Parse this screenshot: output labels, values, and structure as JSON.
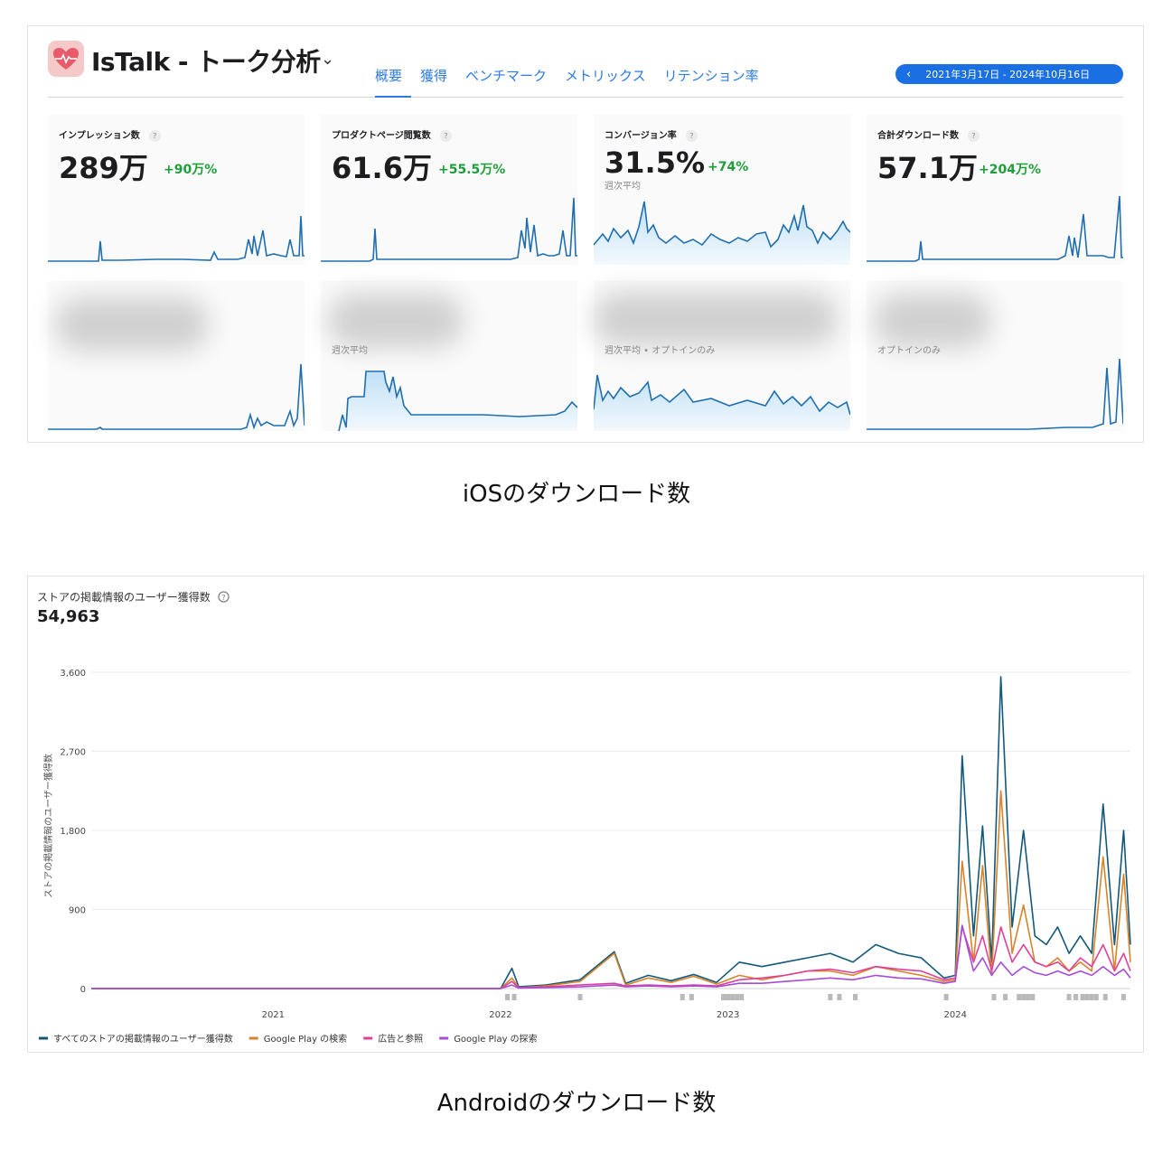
{
  "ios": {
    "app_title": "IsTalk - トーク分析",
    "tabs": [
      "概要",
      "獲得",
      "ベンチマーク",
      "メトリックス",
      "リテンション率"
    ],
    "active_tab": "概要",
    "date_range": "2021年3月17日 - 2024年10月16日",
    "metrics": [
      {
        "label": "インプレッション数",
        "value": "289万",
        "delta": "+90万%",
        "sub": ""
      },
      {
        "label": "プロダクトページ閲覧数",
        "value": "61.6万",
        "delta": "+55.5万%",
        "sub": ""
      },
      {
        "label": "コンバージョン率",
        "value": "31.5%",
        "delta": "+74%",
        "sub": "週次平均"
      },
      {
        "label": "合計ダウンロード数",
        "value": "57.1万",
        "delta": "+204万%",
        "sub": ""
      }
    ],
    "hidden_metrics": [
      {
        "sub": ""
      },
      {
        "sub": "週次平均"
      },
      {
        "sub": "週次平均 • オプトインのみ"
      },
      {
        "sub": "オプトインのみ"
      }
    ],
    "caption": "iOSのダウンロード数",
    "accent_color": "#1f6fb0"
  },
  "android": {
    "title": "ストアの掲載情報のユーザー獲得数",
    "help_icon": "question-circle-icon",
    "total": "54,963",
    "caption": "Androidのダウンロード数",
    "chart_data": {
      "type": "line",
      "title": "ストアの掲載情報のユーザー獲得数",
      "ylabel": "ストアの掲載情報のユーザー獲得数",
      "xlabel": "",
      "ylim": [
        0,
        3600
      ],
      "yticks": [
        "3,600",
        "2,700",
        "1,800",
        "900",
        "0"
      ],
      "ytick_values": [
        3600,
        2700,
        1800,
        900,
        0
      ],
      "xticks": [
        "2021",
        "2022",
        "2023",
        "2024"
      ],
      "xtick_values": [
        2021.0,
        2022.0,
        2023.0,
        2024.0
      ],
      "xlim": [
        2020.2,
        2024.77
      ],
      "legend_position": "bottom-left",
      "x": [
        2020.2,
        2021.0,
        2022.0,
        2022.05,
        2022.08,
        2022.2,
        2022.35,
        2022.5,
        2022.55,
        2022.65,
        2022.75,
        2022.85,
        2022.95,
        2023.05,
        2023.15,
        2023.25,
        2023.35,
        2023.45,
        2023.55,
        2023.65,
        2023.75,
        2023.85,
        2023.95,
        2024.0,
        2024.03,
        2024.08,
        2024.12,
        2024.16,
        2024.2,
        2024.25,
        2024.3,
        2024.35,
        2024.4,
        2024.45,
        2024.5,
        2024.55,
        2024.6,
        2024.65,
        2024.7,
        2024.74,
        2024.77
      ],
      "series": [
        {
          "name": "すべてのストアの掲載情報のユーザー獲得数",
          "color": "#12587a",
          "values": [
            0,
            0,
            0,
            230,
            20,
            40,
            100,
            420,
            60,
            150,
            90,
            160,
            70,
            300,
            250,
            300,
            350,
            400,
            300,
            500,
            400,
            350,
            120,
            150,
            2650,
            600,
            1850,
            300,
            3550,
            700,
            1800,
            600,
            500,
            700,
            400,
            600,
            400,
            2100,
            500,
            1800,
            500
          ]
        },
        {
          "name": "Google Play の検索",
          "color": "#d8842a",
          "values": [
            0,
            0,
            0,
            120,
            10,
            30,
            80,
            400,
            40,
            120,
            70,
            140,
            50,
            150,
            100,
            150,
            200,
            200,
            150,
            250,
            200,
            150,
            80,
            100,
            1450,
            300,
            1400,
            150,
            2250,
            400,
            950,
            300,
            250,
            350,
            200,
            300,
            200,
            1500,
            200,
            1300,
            300
          ]
        },
        {
          "name": "広告と参照",
          "color": "#e0409a",
          "values": [
            0,
            0,
            0,
            80,
            10,
            20,
            40,
            60,
            30,
            40,
            30,
            40,
            30,
            100,
            120,
            150,
            200,
            220,
            180,
            250,
            220,
            200,
            100,
            120,
            700,
            300,
            600,
            200,
            700,
            300,
            500,
            300,
            250,
            300,
            200,
            350,
            250,
            500,
            200,
            400,
            200
          ]
        },
        {
          "name": "Google Play の探索",
          "color": "#a64cd6",
          "values": [
            0,
            0,
            0,
            40,
            5,
            10,
            20,
            40,
            20,
            30,
            20,
            30,
            20,
            60,
            60,
            80,
            100,
            120,
            100,
            150,
            120,
            110,
            60,
            80,
            720,
            200,
            350,
            150,
            300,
            150,
            250,
            180,
            150,
            200,
            150,
            200,
            150,
            250,
            150,
            220,
            120
          ]
        }
      ]
    }
  }
}
